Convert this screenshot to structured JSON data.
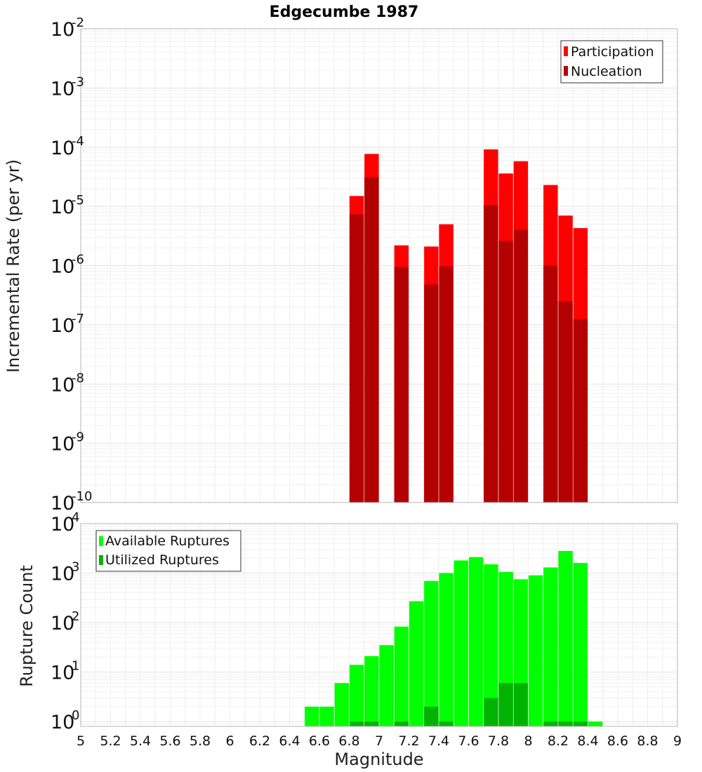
{
  "chart_data": [
    {
      "type": "bar",
      "title": "Edgecumbe 1987",
      "xlabel": "",
      "ylabel": "Incremental Rate (per yr)",
      "xlim": [
        5,
        9
      ],
      "ylim": [
        1e-10,
        0.01
      ],
      "yscale": "log",
      "y_ticks": [
        {
          "base": "10",
          "exp": "-10"
        },
        {
          "base": "10",
          "exp": "-9"
        },
        {
          "base": "10",
          "exp": "-8"
        },
        {
          "base": "10",
          "exp": "-7"
        },
        {
          "base": "10",
          "exp": "-6"
        },
        {
          "base": "10",
          "exp": "-5"
        },
        {
          "base": "10",
          "exp": "-4"
        },
        {
          "base": "10",
          "exp": "-3"
        },
        {
          "base": "10",
          "exp": "-2"
        }
      ],
      "grid": true,
      "legend_position": "top-right",
      "x": [
        6.85,
        6.95,
        7.15,
        7.35,
        7.45,
        7.75,
        7.85,
        7.95,
        8.15,
        8.25,
        8.35
      ],
      "series": [
        {
          "name": "Participation",
          "color": "#ff0000",
          "values": [
            1.5e-05,
            7.7e-05,
            2.2e-06,
            2.1e-06,
            5e-06,
            9.2e-05,
            3.6e-05,
            5.8e-05,
            2.3e-05,
            7e-06,
            4.3e-06
          ]
        },
        {
          "name": "Nucleation",
          "color": "#b30000",
          "values": [
            7.4e-06,
            3.1e-05,
            9.5e-07,
            4.8e-07,
            9.8e-07,
            1.05e-05,
            2.6e-06,
            4e-06,
            1e-06,
            2.5e-07,
            1.25e-07
          ]
        }
      ]
    },
    {
      "type": "bar",
      "title": "",
      "xlabel": "Magnitude",
      "ylabel": "Rupture Count",
      "xlim": [
        5,
        9
      ],
      "ylim": [
        0.8,
        10000
      ],
      "yscale": "log",
      "x_ticks": [
        "5",
        "5.2",
        "5.4",
        "5.6",
        "5.8",
        "6",
        "6.2",
        "6.4",
        "6.6",
        "6.8",
        "7",
        "7.2",
        "7.4",
        "7.6",
        "7.8",
        "8",
        "8.2",
        "8.4",
        "8.6",
        "8.8",
        "9"
      ],
      "y_ticks": [
        {
          "base": "10",
          "exp": "0"
        },
        {
          "base": "10",
          "exp": "1"
        },
        {
          "base": "10",
          "exp": "2"
        },
        {
          "base": "10",
          "exp": "3"
        },
        {
          "base": "10",
          "exp": "4"
        }
      ],
      "grid": true,
      "legend_position": "top-left",
      "series": [
        {
          "name": "Available Ruptures",
          "color": "#00ff00",
          "x": [
            6.55,
            6.65,
            6.75,
            6.85,
            6.95,
            7.05,
            7.15,
            7.25,
            7.35,
            7.45,
            7.55,
            7.65,
            7.75,
            7.85,
            7.95,
            8.05,
            8.15,
            8.25,
            8.35,
            8.45
          ],
          "values": [
            2,
            2,
            6,
            14,
            21,
            35,
            83,
            270,
            690,
            1000,
            1800,
            2100,
            1500,
            1050,
            750,
            900,
            1300,
            2800,
            1600,
            1
          ]
        },
        {
          "name": "Utilized Ruptures",
          "color": "#00b300",
          "x": [
            6.85,
            6.95,
            7.15,
            7.35,
            7.45,
            7.75,
            7.85,
            7.95,
            8.15,
            8.25,
            8.35
          ],
          "values": [
            1,
            1,
            1,
            2,
            1,
            3,
            6,
            6,
            1,
            1,
            1
          ]
        }
      ]
    }
  ]
}
